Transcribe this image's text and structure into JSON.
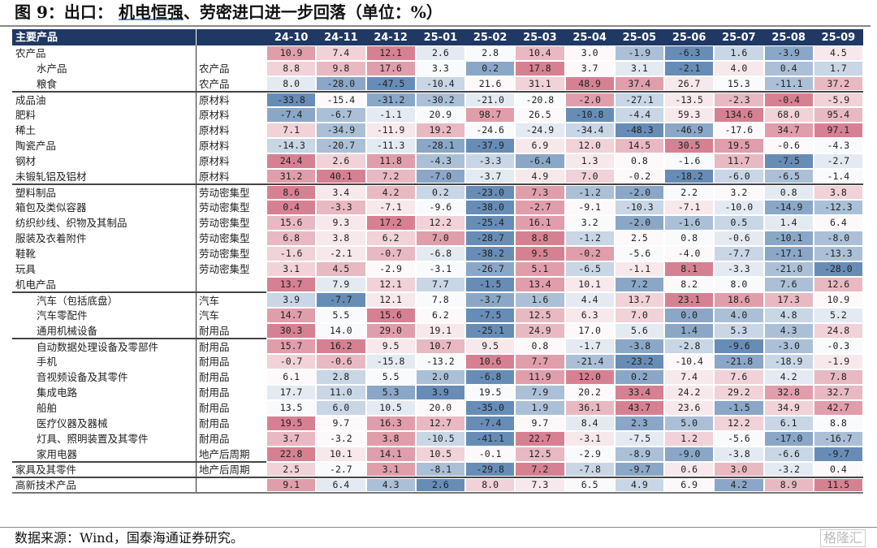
{
  "title": {
    "prefix": "图 9：出口：",
    "main": "机电恒强",
    "rest": "、劳密进口进一步回落（单位：%）"
  },
  "source": "数据来源：Wind，国泰海通证券研究。",
  "watermark": "格隆汇",
  "colors": {
    "header": "#1f3864",
    "low": "#5f87b3",
    "high": "#d47a8c"
  },
  "chart_data": {
    "type": "heatmap",
    "header_label": "主要产品",
    "columns": [
      "24-10",
      "24-11",
      "24-12",
      "25-01",
      "25-02",
      "25-03",
      "25-04",
      "25-05",
      "25-06",
      "25-07",
      "25-08",
      "25-09"
    ],
    "rows": [
      {
        "name": "农产品",
        "category": "",
        "indent": false,
        "values": [
          10.9,
          7.4,
          12.1,
          2.6,
          2.8,
          10.4,
          3.0,
          -1.9,
          -6.3,
          1.6,
          -3.9,
          4.5
        ]
      },
      {
        "name": "水产品",
        "category": "农产品",
        "indent": true,
        "values": [
          8.8,
          9.8,
          17.6,
          3.3,
          0.2,
          17.8,
          3.7,
          3.1,
          -2.1,
          4.0,
          0.4,
          1.7
        ]
      },
      {
        "name": "粮食",
        "category": "农产品",
        "indent": true,
        "values": [
          8.0,
          -28.0,
          -47.5,
          -10.4,
          21.6,
          31.1,
          48.9,
          37.4,
          26.7,
          15.3,
          -11.1,
          37.2
        ]
      },
      {
        "name": "成品油",
        "category": "原材料",
        "indent": false,
        "values": [
          -33.8,
          -15.4,
          -31.2,
          -30.2,
          -21.0,
          -20.8,
          -2.0,
          -27.1,
          -13.5,
          -2.3,
          -0.4,
          -5.9
        ]
      },
      {
        "name": "肥料",
        "category": "原材料",
        "indent": false,
        "values": [
          -7.4,
          -6.7,
          -1.1,
          20.9,
          98.7,
          26.5,
          -10.8,
          -4.4,
          59.3,
          134.6,
          68.0,
          95.4
        ]
      },
      {
        "name": "稀土",
        "category": "原材料",
        "indent": false,
        "values": [
          7.1,
          -34.9,
          -11.9,
          19.2,
          -24.6,
          -24.9,
          -34.4,
          -48.3,
          -46.9,
          -17.6,
          34.7,
          97.1
        ]
      },
      {
        "name": "陶瓷产品",
        "category": "原材料",
        "indent": false,
        "values": [
          -14.3,
          -20.7,
          -11.3,
          -28.1,
          -37.9,
          6.9,
          12.0,
          14.5,
          30.5,
          19.5,
          -0.6,
          -4.3
        ]
      },
      {
        "name": "钢材",
        "category": "原材料",
        "indent": false,
        "values": [
          24.4,
          2.6,
          11.8,
          -4.3,
          -3.3,
          -6.4,
          1.3,
          0.8,
          -1.6,
          11.7,
          -7.5,
          -2.7
        ]
      },
      {
        "name": "未锻轧铝及铝材",
        "category": "原材料",
        "indent": false,
        "values": [
          31.2,
          40.1,
          7.2,
          -7.0,
          -3.7,
          4.9,
          7.0,
          -0.2,
          -18.2,
          -6.0,
          -6.5,
          -1.4
        ]
      },
      {
        "name": "塑料制品",
        "category": "劳动密集型",
        "indent": false,
        "values": [
          8.6,
          3.4,
          4.2,
          0.2,
          -23.0,
          7.3,
          -1.2,
          -2.0,
          2.2,
          3.2,
          0.8,
          3.8
        ]
      },
      {
        "name": "箱包及类似容器",
        "category": "劳动密集型",
        "indent": false,
        "values": [
          0.4,
          -3.3,
          -7.1,
          -9.6,
          -38.0,
          -2.7,
          -9.1,
          -10.3,
          -7.1,
          -10.0,
          -14.9,
          -12.3
        ]
      },
      {
        "name": "纺织纱线、织物及其制品",
        "category": "劳动密集型",
        "indent": false,
        "values": [
          15.6,
          9.3,
          17.2,
          12.2,
          -25.4,
          16.1,
          3.2,
          -2.0,
          -1.6,
          0.5,
          1.4,
          6.4
        ]
      },
      {
        "name": "服装及衣着附件",
        "category": "劳动密集型",
        "indent": false,
        "values": [
          6.8,
          3.8,
          6.2,
          7.0,
          -28.7,
          8.8,
          -1.2,
          2.5,
          0.8,
          -0.6,
          -10.1,
          -8.0
        ]
      },
      {
        "name": "鞋靴",
        "category": "劳动密集型",
        "indent": false,
        "values": [
          -1.6,
          -2.1,
          -0.7,
          -6.8,
          -38.2,
          9.5,
          -0.2,
          -5.6,
          -4.0,
          -7.7,
          -17.1,
          -13.3
        ]
      },
      {
        "name": "玩具",
        "category": "劳动密集型",
        "indent": false,
        "values": [
          3.1,
          4.5,
          -2.9,
          -3.1,
          -26.7,
          5.1,
          -6.5,
          -1.1,
          8.1,
          -3.3,
          -21.0,
          -28.0
        ]
      },
      {
        "name": "机电产品",
        "category": "",
        "indent": false,
        "values": [
          13.7,
          7.9,
          12.1,
          7.7,
          -1.5,
          13.4,
          10.1,
          7.2,
          8.2,
          8.0,
          7.6,
          12.6
        ]
      },
      {
        "name": "汽车（包括底盘）",
        "category": "汽车",
        "indent": true,
        "values": [
          3.9,
          -7.7,
          12.1,
          7.8,
          -3.7,
          1.6,
          4.4,
          13.7,
          23.1,
          18.6,
          17.3,
          10.9
        ]
      },
      {
        "name": "汽车零配件",
        "category": "汽车",
        "indent": true,
        "values": [
          14.7,
          5.5,
          15.6,
          6.2,
          -7.5,
          12.5,
          6.3,
          7.0,
          0.0,
          4.0,
          4.8,
          5.2
        ]
      },
      {
        "name": "通用机械设备",
        "category": "耐用品",
        "indent": true,
        "values": [
          30.3,
          14.0,
          29.0,
          19.1,
          -25.1,
          24.9,
          17.0,
          5.6,
          1.4,
          5.3,
          4.3,
          24.8
        ]
      },
      {
        "name": "自动数据处理设备及零部件",
        "category": "耐用品",
        "indent": true,
        "values": [
          15.7,
          16.2,
          9.5,
          10.7,
          9.5,
          0.8,
          -1.7,
          -3.8,
          -2.8,
          -9.6,
          -3.0,
          -0.3
        ]
      },
      {
        "name": "手机",
        "category": "耐用品",
        "indent": true,
        "values": [
          -0.7,
          -0.6,
          -15.8,
          -13.2,
          10.6,
          7.7,
          -21.4,
          -23.2,
          -10.4,
          -21.8,
          -18.9,
          -1.9
        ]
      },
      {
        "name": "音视频设备及其零件",
        "category": "耐用品",
        "indent": true,
        "values": [
          6.1,
          2.8,
          5.5,
          2.0,
          -6.8,
          11.9,
          12.0,
          0.2,
          7.4,
          7.6,
          4.2,
          7.8
        ]
      },
      {
        "name": "集成电路",
        "category": "耐用品",
        "indent": true,
        "values": [
          17.7,
          11.0,
          5.3,
          3.9,
          19.5,
          7.9,
          20.2,
          33.4,
          24.2,
          29.2,
          32.8,
          32.7
        ]
      },
      {
        "name": "船舶",
        "category": "耐用品",
        "indent": true,
        "values": [
          13.5,
          6.0,
          10.5,
          20.0,
          -35.0,
          1.9,
          36.1,
          43.7,
          23.6,
          -1.5,
          34.9,
          42.7
        ]
      },
      {
        "name": "医疗仪器及器械",
        "category": "耐用品",
        "indent": true,
        "values": [
          19.5,
          9.7,
          16.3,
          12.7,
          -7.4,
          9.7,
          8.4,
          2.3,
          5.0,
          12.2,
          6.1,
          8.8
        ]
      },
      {
        "name": "灯具、照明装置及其零件",
        "category": "耐用品",
        "indent": true,
        "values": [
          3.7,
          -3.2,
          3.8,
          -10.5,
          -41.1,
          22.7,
          -3.1,
          -7.5,
          1.2,
          -5.6,
          -17.0,
          -16.7
        ]
      },
      {
        "name": "家用电器",
        "category": "地产后周期",
        "indent": true,
        "values": [
          22.8,
          10.1,
          14.1,
          10.5,
          -0.1,
          12.5,
          -2.9,
          -8.9,
          -9.0,
          -3.8,
          -6.6,
          -9.7
        ]
      },
      {
        "name": "家具及其零件",
        "category": "地产后周期",
        "indent": false,
        "values": [
          2.5,
          -2.7,
          3.1,
          -8.1,
          -29.8,
          7.2,
          -7.8,
          -9.7,
          0.6,
          3.0,
          -3.2,
          0.4
        ]
      },
      {
        "name": "高新技术产品",
        "category": "",
        "indent": false,
        "values": [
          9.1,
          6.4,
          4.3,
          2.6,
          8.0,
          7.3,
          6.5,
          4.9,
          6.9,
          4.2,
          8.9,
          11.5
        ]
      }
    ]
  }
}
